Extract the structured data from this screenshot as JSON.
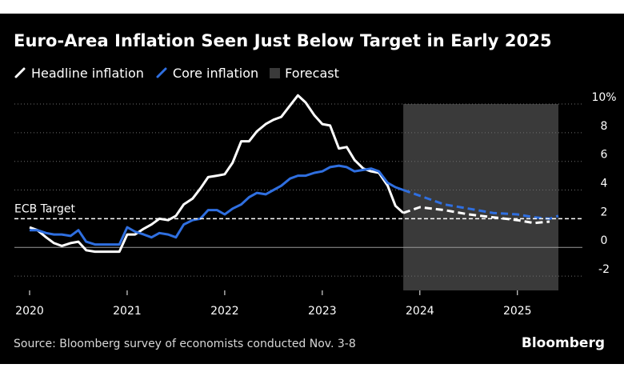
{
  "chart_data": {
    "type": "line",
    "title": "Euro-Area Inflation Seen Just Below Target in Early 2025",
    "legend": {
      "placement": "top-left",
      "entries": [
        {
          "label": "Headline inflation",
          "color": "#ffffff"
        },
        {
          "label": "Core inflation",
          "color": "#2f6fe0"
        },
        {
          "label": "Forecast",
          "color": "#3a3a3a"
        }
      ]
    },
    "annotation": {
      "label": "ECB Target",
      "value": 2
    },
    "source": "Source: Bloomberg survey of economists conducted Nov. 3-8",
    "brand": "Bloomberg",
    "xlim": [
      2020.0,
      2025.42
    ],
    "ylim": [
      -3,
      10
    ],
    "x_ticks": [
      2020,
      2021,
      2022,
      2023,
      2024,
      2025
    ],
    "x_tick_labels": [
      "2020",
      "2021",
      "2022",
      "2023",
      "2024",
      "2025"
    ],
    "y_ticks": [
      10,
      8,
      6,
      4,
      2,
      0,
      -2
    ],
    "y_tick_labels": [
      "10%",
      "8",
      "6",
      "4",
      "2",
      "0",
      "-2"
    ],
    "forecast_region": [
      2023.83,
      2025.42
    ],
    "grid": "horizontal dotted",
    "series": [
      {
        "name": "Headline inflation",
        "color": "#ffffff",
        "style": "solid",
        "x": [
          2020.0,
          2020.08,
          2020.17,
          2020.25,
          2020.33,
          2020.42,
          2020.5,
          2020.58,
          2020.67,
          2020.75,
          2020.83,
          2020.92,
          2021.0,
          2021.08,
          2021.17,
          2021.25,
          2021.33,
          2021.42,
          2021.5,
          2021.58,
          2021.67,
          2021.75,
          2021.83,
          2021.92,
          2022.0,
          2022.08,
          2022.17,
          2022.25,
          2022.33,
          2022.42,
          2022.5,
          2022.58,
          2022.67,
          2022.75,
          2022.83,
          2022.92,
          2023.0,
          2023.08,
          2023.17,
          2023.25,
          2023.33,
          2023.42,
          2023.5,
          2023.58,
          2023.67,
          2023.75,
          2023.83
        ],
        "values": [
          1.4,
          1.2,
          0.7,
          0.3,
          0.1,
          0.3,
          0.4,
          -0.2,
          -0.3,
          -0.3,
          -0.3,
          -0.3,
          0.9,
          0.9,
          1.3,
          1.6,
          2.0,
          1.9,
          2.2,
          3.0,
          3.4,
          4.1,
          4.9,
          5.0,
          5.1,
          5.9,
          7.4,
          7.4,
          8.1,
          8.6,
          8.9,
          9.1,
          9.9,
          10.6,
          10.1,
          9.2,
          8.6,
          8.5,
          6.9,
          7.0,
          6.1,
          5.5,
          5.3,
          5.2,
          4.3,
          2.9,
          2.4
        ]
      },
      {
        "name": "Headline inflation",
        "color": "#ffffff",
        "style": "dashed",
        "x": [
          2023.83,
          2024.0,
          2024.25,
          2024.5,
          2024.75,
          2025.0,
          2025.17,
          2025.33
        ],
        "values": [
          2.4,
          2.8,
          2.6,
          2.3,
          2.1,
          1.9,
          1.7,
          1.8
        ]
      },
      {
        "name": "Core inflation",
        "color": "#2f6fe0",
        "style": "solid",
        "x": [
          2020.0,
          2020.08,
          2020.17,
          2020.25,
          2020.33,
          2020.42,
          2020.5,
          2020.58,
          2020.67,
          2020.75,
          2020.83,
          2020.92,
          2021.0,
          2021.08,
          2021.17,
          2021.25,
          2021.33,
          2021.42,
          2021.5,
          2021.58,
          2021.67,
          2021.75,
          2021.83,
          2021.92,
          2022.0,
          2022.08,
          2022.17,
          2022.25,
          2022.33,
          2022.42,
          2022.5,
          2022.58,
          2022.67,
          2022.75,
          2022.83,
          2022.92,
          2023.0,
          2023.08,
          2023.17,
          2023.25,
          2023.33,
          2023.42,
          2023.5,
          2023.58,
          2023.67,
          2023.75,
          2023.83
        ],
        "values": [
          1.2,
          1.2,
          1.0,
          0.9,
          0.9,
          0.8,
          1.2,
          0.4,
          0.2,
          0.2,
          0.2,
          0.2,
          1.4,
          1.1,
          0.9,
          0.7,
          1.0,
          0.9,
          0.7,
          1.6,
          1.9,
          2.0,
          2.6,
          2.6,
          2.3,
          2.7,
          3.0,
          3.5,
          3.8,
          3.7,
          4.0,
          4.3,
          4.8,
          5.0,
          5.0,
          5.2,
          5.3,
          5.6,
          5.7,
          5.6,
          5.3,
          5.4,
          5.5,
          5.3,
          4.5,
          4.2,
          4.0
        ]
      },
      {
        "name": "Core inflation",
        "color": "#2f6fe0",
        "style": "dashed",
        "x": [
          2023.83,
          2024.0,
          2024.25,
          2024.5,
          2024.75,
          2025.0,
          2025.17,
          2025.33,
          2025.42
        ],
        "values": [
          4.0,
          3.6,
          3.0,
          2.7,
          2.4,
          2.3,
          2.1,
          2.0,
          2.2
        ]
      }
    ]
  }
}
